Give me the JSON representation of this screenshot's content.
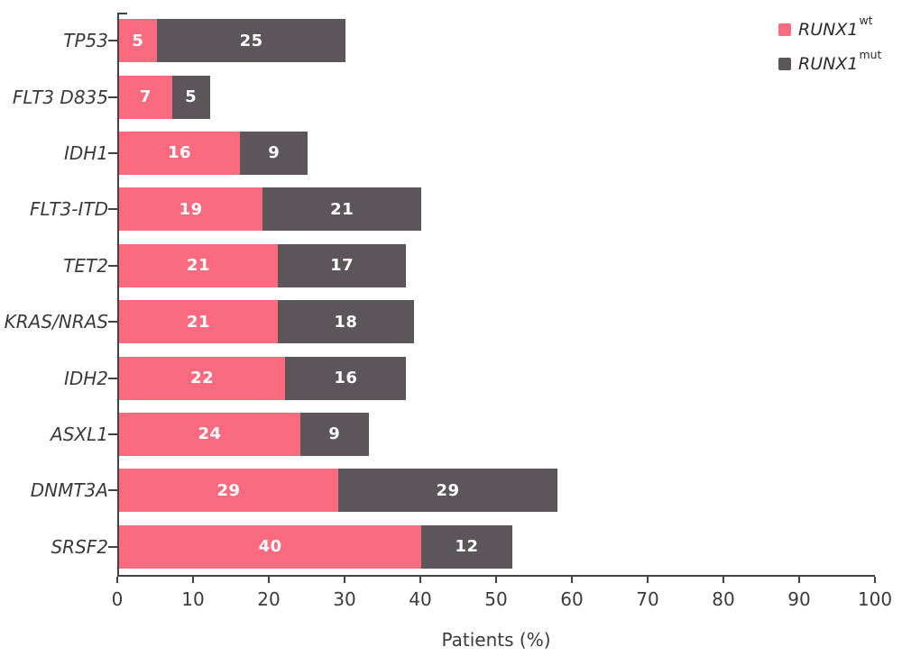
{
  "chart_data": {
    "type": "bar",
    "orientation": "horizontal",
    "stacked": true,
    "title": "",
    "xlabel": "Patients (%)",
    "ylabel": "",
    "xlim": [
      0,
      100
    ],
    "xticks": [
      0,
      10,
      20,
      30,
      40,
      50,
      60,
      70,
      80,
      90,
      100
    ],
    "grid": false,
    "legend_position": "top-right",
    "bar_value_labels": true,
    "categories": [
      "TP53",
      "FLT3 D835",
      "IDH1",
      "FLT3-ITD",
      "TET2",
      "KRAS/NRAS",
      "IDH2",
      "ASXL1",
      "DNMT3A",
      "SRSF2"
    ],
    "series": [
      {
        "name": "RUNX1wt",
        "label_base": "RUNX1",
        "label_sup": "wt",
        "color": "#FB6B7F",
        "values": [
          5,
          7,
          16,
          19,
          21,
          21,
          22,
          24,
          29,
          40
        ]
      },
      {
        "name": "RUNX1mut",
        "label_base": "RUNX1",
        "label_sup": "mut",
        "color": "#5C565A",
        "values": [
          25,
          5,
          9,
          21,
          17,
          18,
          16,
          9,
          29,
          12
        ]
      }
    ]
  },
  "colors": {
    "series_wt": "#FB6B7F",
    "series_mut": "#5C565A",
    "axis": "#454245",
    "category_text": "#3A3A3A",
    "tick_text": "#3C3C3C",
    "legend_text": "#2E2B2D",
    "bar_value_text": "#FFFFFF"
  }
}
